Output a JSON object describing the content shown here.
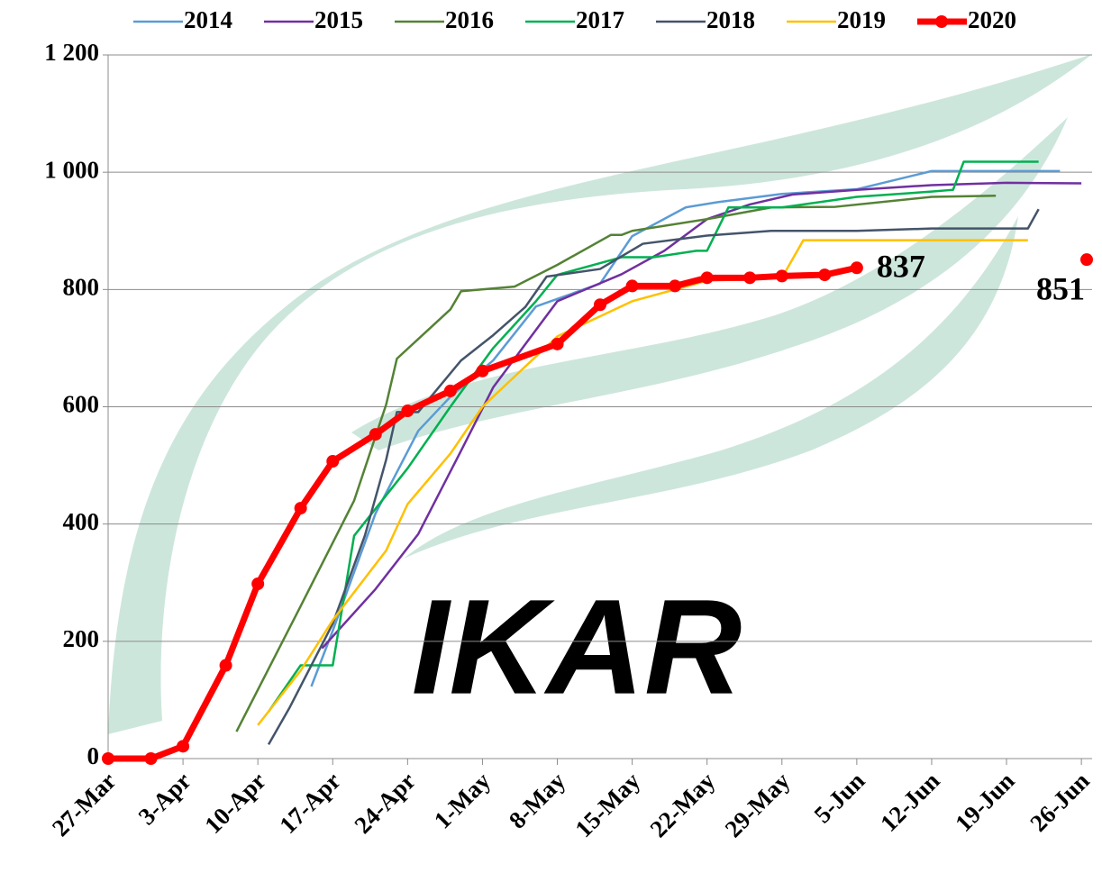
{
  "chart_data": {
    "type": "line",
    "xlim": [
      "27-Mar",
      "27-Jun"
    ],
    "xticks": [
      "27-Mar",
      "3-Apr",
      "10-Apr",
      "17-Apr",
      "24-Apr",
      "1-May",
      "8-May",
      "15-May",
      "22-May",
      "29-May",
      "5-Jun",
      "12-Jun",
      "19-Jun",
      "26-Jun"
    ],
    "ylim": [
      0,
      1200
    ],
    "yticks": [
      0,
      200,
      400,
      600,
      800,
      {
        "value": 1000,
        "label": "1 000"
      },
      {
        "value": 1200,
        "label": "1 200"
      }
    ],
    "grid": true,
    "legend": "top",
    "series": [
      {
        "name": "2014",
        "color": "#5b9bd5",
        "x": [
          "15-Apr",
          "17-Apr",
          "21-Apr",
          "25-Apr",
          "28-Apr",
          "2-May",
          "6-May",
          "12-May",
          "15-May",
          "20-May",
          "23-May",
          "29-May",
          "5-Jun",
          "12-Jun",
          "24-Jun"
        ],
        "values": [
          123,
          218,
          418,
          559,
          617,
          679,
          771,
          810,
          891,
          940,
          949,
          963,
          971,
          1002,
          1002
        ]
      },
      {
        "name": "2015",
        "color": "#7030a0",
        "x": [
          "16-Apr",
          "21-Apr",
          "25-Apr",
          "29-Apr",
          "2-May",
          "8-May",
          "14-May",
          "18-May",
          "22-May",
          "26-May",
          "30-May",
          "5-Jun",
          "12-Jun",
          "19-Jun",
          "26-Jun"
        ],
        "values": [
          188,
          289,
          383,
          525,
          633,
          780,
          826,
          866,
          920,
          945,
          962,
          970,
          978,
          982,
          981
        ]
      },
      {
        "name": "2016",
        "color": "#548235",
        "x": [
          "8-Apr",
          "14-Apr",
          "19-Apr",
          "22-Apr",
          "23-Apr",
          "28-Apr",
          "29-Apr",
          "4-May",
          "8-May",
          "13-May",
          "14-May",
          "15-May",
          "22-May",
          "28-May",
          "3-Jun",
          "12-Jun",
          "18-Jun"
        ],
        "values": [
          46,
          260,
          440,
          604,
          682,
          766,
          797,
          805,
          842,
          893,
          893,
          900,
          920,
          940,
          941,
          958,
          960
        ]
      },
      {
        "name": "2017",
        "color": "#00b050",
        "x": [
          "11-Apr",
          "14-Apr",
          "17-Apr",
          "19-Apr",
          "24-Apr",
          "28-Apr",
          "2-May",
          "6-May",
          "8-May",
          "14-May",
          "17-May",
          "21-May",
          "22-May",
          "24-May",
          "29-May",
          "5-Jun",
          "12-Jun",
          "14-Jun",
          "15-Jun",
          "22-Jun"
        ],
        "values": [
          80,
          159,
          159,
          380,
          495,
          600,
          700,
          780,
          825,
          855,
          855,
          866,
          866,
          940,
          940,
          958,
          967,
          970,
          1018,
          1018
        ]
      },
      {
        "name": "2018",
        "color": "#44546a",
        "x": [
          "11-Apr",
          "13-Apr",
          "17-Apr",
          "20-Apr",
          "22-Apr",
          "23-Apr",
          "25-Apr",
          "29-Apr",
          "2-May",
          "5-May",
          "7-May",
          "12-May",
          "16-May",
          "22-May",
          "28-May",
          "5-Jun",
          "12-Jun",
          "21-Jun",
          "22-Jun"
        ],
        "values": [
          24,
          88,
          230,
          380,
          510,
          591,
          591,
          679,
          722,
          770,
          822,
          835,
          878,
          892,
          900,
          900,
          904,
          904,
          937
        ]
      },
      {
        "name": "2019",
        "color": "#ffc000",
        "x": [
          "10-Apr",
          "14-Apr",
          "17-Apr",
          "22-Apr",
          "24-Apr",
          "28-Apr",
          "1-May",
          "8-May",
          "15-May",
          "22-May",
          "29-May",
          "31-May",
          "7-Jun",
          "21-Jun"
        ],
        "values": [
          57,
          150,
          236,
          355,
          434,
          520,
          600,
          720,
          780,
          815,
          820,
          884,
          884,
          884
        ]
      },
      {
        "name": "2020",
        "color": "#ff0000",
        "x": [
          "27-Mar",
          "31-Mar",
          "3-Apr",
          "7-Apr",
          "10-Apr",
          "14-Apr",
          "17-Apr",
          "21-Apr",
          "24-Apr",
          "28-Apr",
          "1-May",
          "8-May",
          "12-May",
          "15-May",
          "19-May",
          "22-May",
          "26-May",
          "29-May",
          "2-Jun",
          "5-Jun"
        ],
        "values": [
          0,
          0,
          21,
          159,
          298,
          427,
          507,
          553,
          593,
          627,
          661,
          707,
          774,
          806,
          806,
          820,
          820,
          823,
          825,
          837
        ]
      }
    ],
    "forecast": {
      "x": "27-Jun",
      "value": 851,
      "color": "#ff0000"
    }
  }
}
